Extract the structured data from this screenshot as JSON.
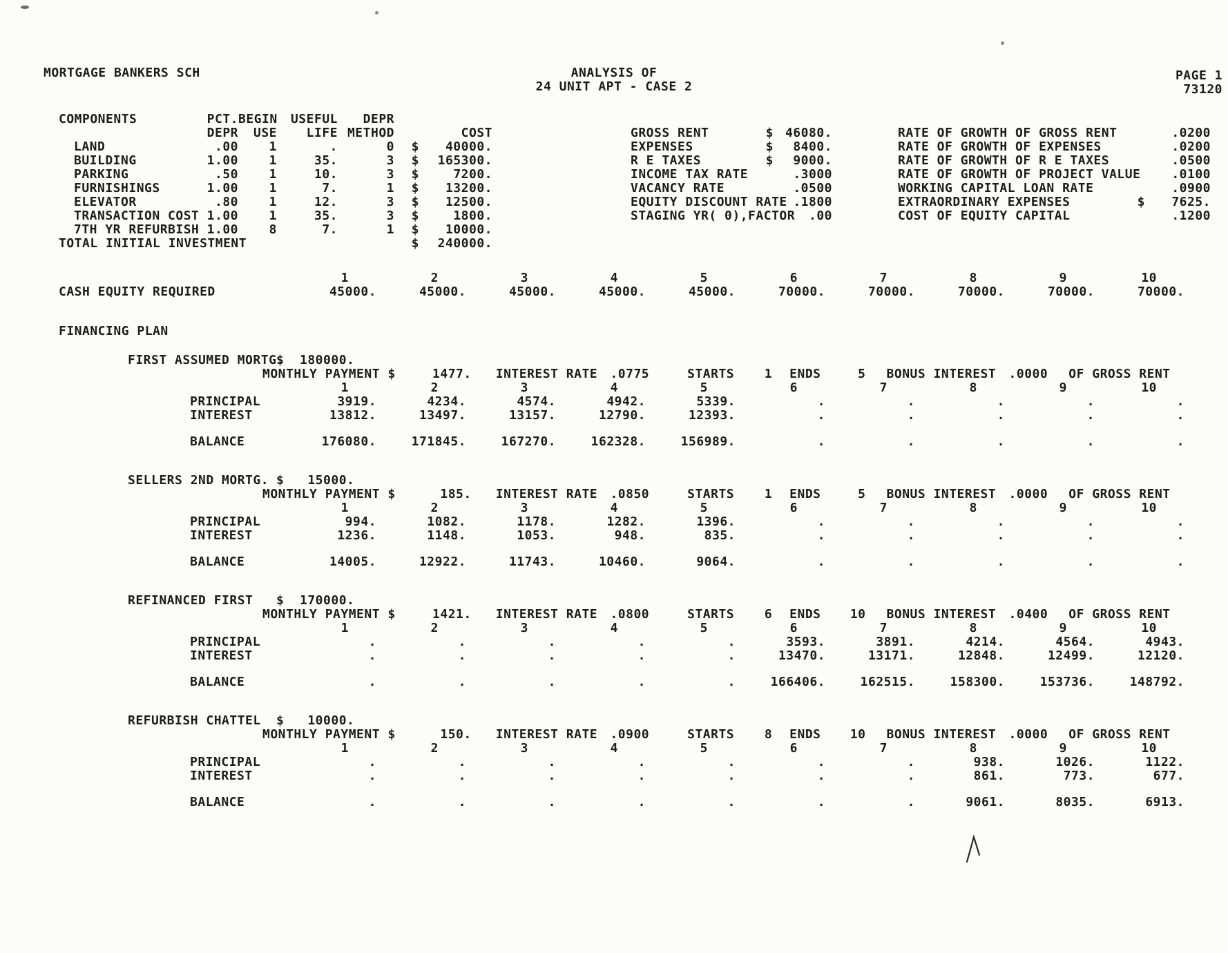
{
  "header": {
    "org": "MORTGAGE BANKERS SCH",
    "title_line1": "ANALYSIS OF",
    "title_line2": "24 UNIT APT - CASE 2",
    "page": "PAGE 1",
    "doc_number": "73120"
  },
  "components": {
    "header_row1": [
      "COMPONENTS",
      "PCT.",
      "BEGIN",
      "USEFUL",
      "DEPR",
      "",
      ""
    ],
    "header_row2": [
      "",
      "DEPR",
      "USE",
      "LIFE",
      "METHOD",
      "",
      "COST"
    ],
    "rows": [
      [
        "LAND",
        ".00",
        "1",
        ".",
        "0",
        "$",
        "40000."
      ],
      [
        "BUILDING",
        "1.00",
        "1",
        "35.",
        "3",
        "$",
        "165300."
      ],
      [
        "PARKING",
        ".50",
        "1",
        "10.",
        "3",
        "$",
        "7200."
      ],
      [
        "FURNISHINGS",
        "1.00",
        "1",
        "7.",
        "1",
        "$",
        "13200."
      ],
      [
        "ELEVATOR",
        ".80",
        "1",
        "12.",
        "3",
        "$",
        "12500."
      ],
      [
        "TRANSACTION COST",
        "1.00",
        "1",
        "35.",
        "3",
        "$",
        "1800."
      ],
      [
        "7TH YR REFURBISH",
        "1.00",
        "8",
        "7.",
        "1",
        "$",
        "10000."
      ]
    ],
    "total_row": [
      "TOTAL INITIAL INVESTMENT",
      "",
      "",
      "",
      "",
      "$",
      "240000."
    ]
  },
  "summary_left": [
    {
      "label": "GROSS RENT",
      "dollar": "$",
      "value": "46080."
    },
    {
      "label": "EXPENSES",
      "dollar": "$",
      "value": "8400."
    },
    {
      "label": "R E TAXES",
      "dollar": "$",
      "value": "9000."
    },
    {
      "label": "INCOME TAX RATE",
      "dollar": "",
      "value": ".3000"
    },
    {
      "label": "VACANCY RATE",
      "dollar": "",
      "value": ".0500"
    },
    {
      "label": "EQUITY DISCOUNT RATE",
      "dollar": "",
      "value": ".1800"
    },
    {
      "label": "STAGING YR( 0),FACTOR",
      "dollar": "",
      "value": ".00"
    }
  ],
  "summary_right": [
    {
      "label": "RATE OF GROWTH OF GROSS RENT",
      "dollar": "",
      "value": ".0200"
    },
    {
      "label": "RATE OF GROWTH OF EXPENSES",
      "dollar": "",
      "value": ".0200"
    },
    {
      "label": "RATE OF GROWTH OF R E TAXES",
      "dollar": "",
      "value": ".0500"
    },
    {
      "label": "RATE OF GROWTH OF PROJECT VALUE",
      "dollar": "",
      "value": ".0100"
    },
    {
      "label": "WORKING CAPITAL LOAN RATE",
      "dollar": "",
      "value": ".0900"
    },
    {
      "label": "EXTRAORDINARY EXPENSES",
      "dollar": "$",
      "value": "7625."
    },
    {
      "label": "COST OF EQUITY CAPITAL",
      "dollar": "",
      "value": ".1200"
    }
  ],
  "years": [
    "1",
    "2",
    "3",
    "4",
    "5",
    "6",
    "7",
    "8",
    "9",
    "10"
  ],
  "cash_equity": {
    "label": "CASH EQUITY REQUIRED",
    "values": [
      "45000.",
      "45000.",
      "45000.",
      "45000.",
      "45000.",
      "70000.",
      "70000.",
      "70000.",
      "70000.",
      "70000."
    ]
  },
  "financing": {
    "heading": "FINANCING PLAN",
    "terms_labels": {
      "monthly_payment": "MONTHLY PAYMENT $",
      "interest_rate": "INTEREST RATE",
      "starts": "STARTS",
      "ends": "ENDS",
      "bonus_interest": "BONUS INTEREST",
      "of_gross_rent": "OF GROSS RENT"
    },
    "row_labels": {
      "principal": "PRINCIPAL",
      "interest": "INTEREST",
      "balance": "BALANCE"
    },
    "sections": [
      {
        "name": "FIRST ASSUMED MORTG.",
        "amount": "$  180000.",
        "terms": {
          "monthly_payment": "1477.",
          "interest_rate": ".0775",
          "starts": "1",
          "ends": "5",
          "bonus_interest": ".0000"
        },
        "principal": [
          "3919.",
          "4234.",
          "4574.",
          "4942.",
          "5339.",
          ".",
          ".",
          ".",
          ".",
          "."
        ],
        "interest": [
          "13812.",
          "13497.",
          "13157.",
          "12790.",
          "12393.",
          ".",
          ".",
          ".",
          ".",
          "."
        ],
        "balance": [
          "176080.",
          "171845.",
          "167270.",
          "162328.",
          "156989.",
          ".",
          ".",
          ".",
          ".",
          "."
        ]
      },
      {
        "name": "SELLERS 2ND MORTG.",
        "amount": "$   15000.",
        "terms": {
          "monthly_payment": "185.",
          "interest_rate": ".0850",
          "starts": "1",
          "ends": "5",
          "bonus_interest": ".0000"
        },
        "principal": [
          "994.",
          "1082.",
          "1178.",
          "1282.",
          "1396.",
          ".",
          ".",
          ".",
          ".",
          "."
        ],
        "interest": [
          "1236.",
          "1148.",
          "1053.",
          "948.",
          "835.",
          ".",
          ".",
          ".",
          ".",
          "."
        ],
        "balance": [
          "14005.",
          "12922.",
          "11743.",
          "10460.",
          "9064.",
          ".",
          ".",
          ".",
          ".",
          "."
        ]
      },
      {
        "name": "REFINANCED FIRST",
        "amount": "$  170000.",
        "terms": {
          "monthly_payment": "1421.",
          "interest_rate": ".0800",
          "starts": "6",
          "ends": "10",
          "bonus_interest": ".0400"
        },
        "principal": [
          ".",
          ".",
          ".",
          ".",
          ".",
          "3593.",
          "3891.",
          "4214.",
          "4564.",
          "4943."
        ],
        "interest": [
          ".",
          ".",
          ".",
          ".",
          ".",
          "13470.",
          "13171.",
          "12848.",
          "12499.",
          "12120."
        ],
        "balance": [
          ".",
          ".",
          ".",
          ".",
          ".",
          "166406.",
          "162515.",
          "158300.",
          "153736.",
          "148792."
        ]
      },
      {
        "name": "REFURBISH CHATTEL",
        "amount": "$   10000.",
        "terms": {
          "monthly_payment": "150.",
          "interest_rate": ".0900",
          "starts": "8",
          "ends": "10",
          "bonus_interest": ".0000"
        },
        "principal": [
          ".",
          ".",
          ".",
          ".",
          ".",
          ".",
          ".",
          "938.",
          "1026.",
          "1122."
        ],
        "interest": [
          ".",
          ".",
          ".",
          ".",
          ".",
          ".",
          ".",
          "861.",
          "773.",
          "677."
        ],
        "balance": [
          ".",
          ".",
          ".",
          ".",
          ".",
          ".",
          ".",
          "9061.",
          "8035.",
          "6913."
        ]
      }
    ]
  }
}
